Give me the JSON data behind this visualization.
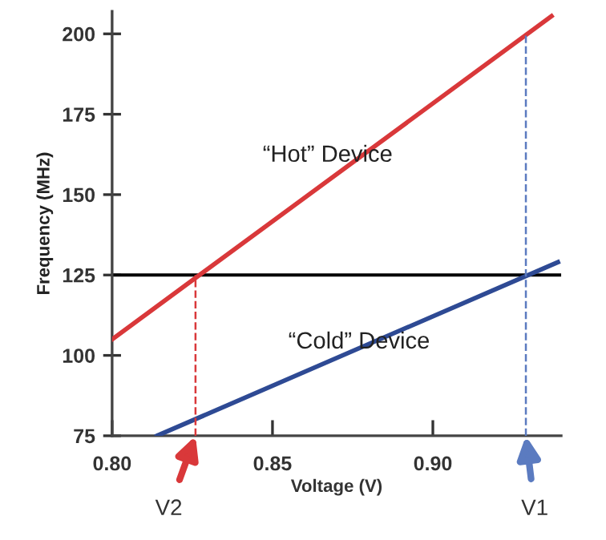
{
  "chart_data": {
    "type": "line",
    "xlabel": "Voltage (V)",
    "ylabel": "Frequency (MHz)",
    "xlim": [
      0.8,
      0.94
    ],
    "ylim": [
      75,
      207
    ],
    "xticks": [
      {
        "value": 0.8,
        "label": "0.80"
      },
      0.85,
      {
        "value": 0.9,
        "label": "0.90"
      }
    ],
    "yticks": [
      75,
      100,
      125,
      150,
      175,
      200
    ],
    "grid": false,
    "marker": "none",
    "series": [
      {
        "color": "#d9383a",
        "x": [
          0.8,
          0.937
        ],
        "values": [
          105,
          205.5
        ],
        "line_style": "solid"
      },
      {
        "color": "#2e4a94",
        "x": [
          0.814,
          0.939
        ],
        "values": [
          75,
          129
        ],
        "line_style": "solid"
      },
      {
        "color": "#d9383a",
        "x": [
          0.826,
          0.826
        ],
        "values": [
          75,
          125
        ],
        "line_style": "dashed"
      },
      {
        "color": "#5b7bc0",
        "x": [
          0.929,
          0.929
        ],
        "values": [
          75,
          200
        ],
        "line_style": "dashed"
      }
    ],
    "ref_lines": [
      {
        "axis": "y",
        "value": 125,
        "color": "#000000",
        "line_style": "solid"
      }
    ],
    "annotations": [
      "“Hot” Device",
      "“Cold” Device",
      {
        "text": "V2",
        "x": 0.826,
        "y": 75
      },
      {
        "text": "V1",
        "x": 0.929,
        "y": 75
      }
    ]
  }
}
